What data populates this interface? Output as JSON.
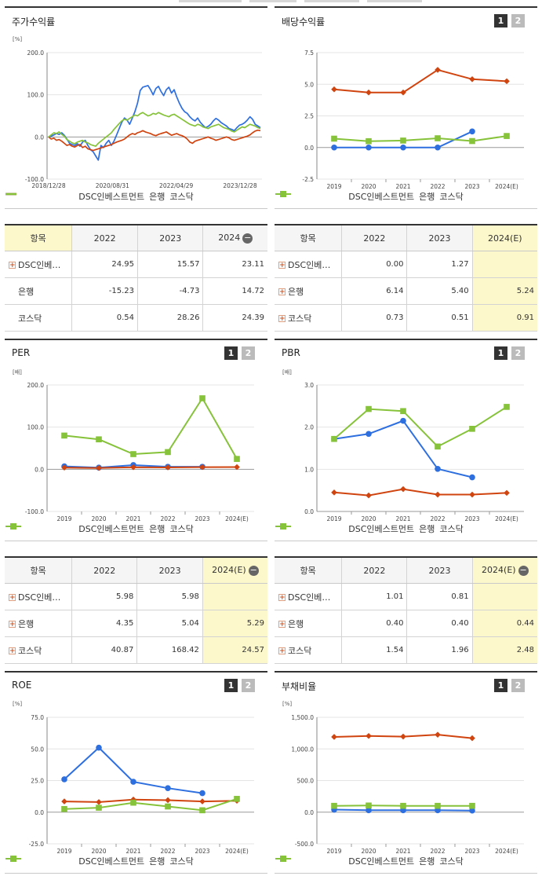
{
  "colors": {
    "dsc": "#2e6fe0",
    "bank": "#d04410",
    "kosdaq": "#86c23a"
  },
  "panels": [
    {
      "id": "stock-return",
      "title": "주가수익률",
      "unit": "[%]",
      "pager": [],
      "legend_style": "line",
      "legend": [
        "DSC인베스트먼트",
        "은행",
        "코스닥"
      ],
      "chart_data": {
        "type": "line",
        "ylim": [
          -100,
          200
        ],
        "yticks": [
          "200.0",
          "100.0",
          "0.0",
          "-100.0"
        ],
        "xticks": [
          "2018/12/28",
          "2020/08/31",
          "2022/04/29",
          "2023/12/28"
        ],
        "series": [
          {
            "name": "DSC인베스트먼트",
            "color": "#2e6fe0",
            "values": [
              0,
              2,
              5,
              8,
              6,
              10,
              4,
              -5,
              -15,
              -18,
              -20,
              -16,
              -22,
              -12,
              -8,
              -20,
              -30,
              -35,
              -45,
              -55,
              -20,
              -25,
              -15,
              -8,
              -20,
              -10,
              5,
              20,
              35,
              45,
              40,
              30,
              45,
              60,
              80,
              110,
              118,
              120,
              122,
              112,
              100,
              115,
              120,
              108,
              98,
              112,
              118,
              104,
              112,
              95,
              80,
              68,
              60,
              56,
              48,
              42,
              38,
              45,
              35,
              28,
              22,
              25,
              30,
              38,
              44,
              40,
              34,
              30,
              26,
              20,
              18,
              15,
              22,
              28,
              30,
              34,
              40,
              48,
              42,
              30,
              26,
              22
            ]
          },
          {
            "name": "은행",
            "color": "#d04410",
            "values": [
              0,
              -5,
              -3,
              -8,
              -6,
              -10,
              -15,
              -20,
              -18,
              -22,
              -24,
              -20,
              -18,
              -25,
              -22,
              -28,
              -30,
              -32,
              -30,
              -28,
              -26,
              -24,
              -22,
              -20,
              -18,
              -15,
              -12,
              -10,
              -8,
              -5,
              0,
              5,
              8,
              6,
              10,
              12,
              15,
              12,
              10,
              8,
              5,
              3,
              6,
              8,
              10,
              12,
              8,
              4,
              6,
              8,
              5,
              3,
              0,
              -5,
              -12,
              -15,
              -10,
              -8,
              -6,
              -4,
              -2,
              0,
              -3,
              -5,
              -8,
              -6,
              -4,
              -2,
              0,
              -2,
              -6,
              -8,
              -6,
              -4,
              -2,
              0,
              2,
              5,
              10,
              14,
              16,
              15
            ]
          },
          {
            "name": "코스닥",
            "color": "#86c23a",
            "values": [
              0,
              5,
              10,
              8,
              12,
              6,
              2,
              -6,
              -10,
              -14,
              -16,
              -12,
              -10,
              -8,
              -12,
              -14,
              -18,
              -20,
              -22,
              -15,
              -10,
              -5,
              0,
              5,
              10,
              18,
              25,
              32,
              38,
              42,
              40,
              44,
              48,
              52,
              50,
              55,
              58,
              54,
              50,
              52,
              56,
              54,
              58,
              55,
              52,
              50,
              48,
              52,
              54,
              50,
              46,
              42,
              38,
              34,
              30,
              28,
              26,
              30,
              28,
              24,
              22,
              20,
              24,
              26,
              28,
              30,
              26,
              22,
              20,
              18,
              14,
              12,
              16,
              20,
              24,
              22,
              26,
              30,
              28,
              26,
              22,
              20
            ]
          }
        ]
      }
    },
    {
      "id": "dividend-yield",
      "title": "배당수익률",
      "unit": "",
      "pager": [
        "1",
        "2"
      ],
      "legend_style": "marker",
      "legend": [
        "DSC인베스트먼트",
        "은행",
        "코스닥"
      ],
      "chart_data": {
        "type": "line",
        "ylim": [
          -2.5,
          7.5
        ],
        "yticks": [
          "7.5",
          "5.0",
          "2.5",
          "0.0",
          "-2.5"
        ],
        "xticks": [
          "2019",
          "2020",
          "2021",
          "2022",
          "2023",
          "2024(E)"
        ],
        "series": [
          {
            "name": "DSC인베스트먼트",
            "color": "#2e6fe0",
            "marker": "circle",
            "values": [
              0.0,
              0.0,
              0.0,
              0.0,
              1.27,
              null
            ]
          },
          {
            "name": "은행",
            "color": "#d04410",
            "marker": "diamond",
            "values": [
              4.6,
              4.35,
              4.35,
              6.14,
              5.4,
              5.24
            ]
          },
          {
            "name": "코스닥",
            "color": "#86c23a",
            "marker": "square",
            "values": [
              0.7,
              0.5,
              0.55,
              0.73,
              0.51,
              0.91
            ]
          }
        ]
      }
    },
    {
      "id": "per",
      "title": "PER",
      "unit": "[배]",
      "pager": [
        "1",
        "2"
      ],
      "legend_style": "marker",
      "legend": [
        "DSC인베스트먼트",
        "은행",
        "코스닥"
      ],
      "chart_data": {
        "type": "line",
        "ylim": [
          -100,
          200
        ],
        "yticks": [
          "200.0",
          "100.0",
          "0.0",
          "-100.0"
        ],
        "xticks": [
          "2019",
          "2020",
          "2021",
          "2022",
          "2023",
          "2024(E)"
        ],
        "series": [
          {
            "name": "DSC인베스트먼트",
            "color": "#2e6fe0",
            "marker": "circle",
            "values": [
              7,
              4,
              10,
              5.98,
              5.98,
              null
            ]
          },
          {
            "name": "은행",
            "color": "#d04410",
            "marker": "diamond",
            "values": [
              4,
              3,
              5,
              4.35,
              5.04,
              5.29
            ]
          },
          {
            "name": "코스닥",
            "color": "#86c23a",
            "marker": "square",
            "values": [
              80,
              71,
              36,
              40.87,
              168.42,
              24.57
            ]
          }
        ]
      }
    },
    {
      "id": "pbr",
      "title": "PBR",
      "unit": "[배]",
      "pager": [
        "1",
        "2"
      ],
      "legend_style": "marker",
      "legend": [
        "DSC인베스트먼트",
        "은행",
        "코스닥"
      ],
      "chart_data": {
        "type": "line",
        "ylim": [
          0,
          3
        ],
        "yticks": [
          "3.0",
          "2.0",
          "1.0",
          "0.0"
        ],
        "xticks": [
          "2019",
          "2020",
          "2021",
          "2022",
          "2023",
          "2024(E)"
        ],
        "series": [
          {
            "name": "DSC인베스트먼트",
            "color": "#2e6fe0",
            "marker": "circle",
            "values": [
              1.72,
              1.84,
              2.15,
              1.01,
              0.81,
              null
            ]
          },
          {
            "name": "은행",
            "color": "#d04410",
            "marker": "diamond",
            "values": [
              0.45,
              0.38,
              0.53,
              0.4,
              0.4,
              0.44
            ]
          },
          {
            "name": "코스닥",
            "color": "#86c23a",
            "marker": "square",
            "values": [
              1.72,
              2.43,
              2.38,
              1.54,
              1.96,
              2.48
            ]
          }
        ]
      }
    },
    {
      "id": "roe",
      "title": "ROE",
      "unit": "[%]",
      "pager": [
        "1",
        "2"
      ],
      "legend_style": "marker",
      "legend": [
        "DSC인베스트먼트",
        "은행",
        "코스닥"
      ],
      "chart_data": {
        "type": "line",
        "ylim": [
          -25,
          75
        ],
        "yticks": [
          "75.0",
          "50.0",
          "25.0",
          "0.0",
          "-25.0"
        ],
        "xticks": [
          "2019",
          "2020",
          "2021",
          "2022",
          "2023",
          "2024(E)"
        ],
        "series": [
          {
            "name": "DSC인베스트먼트",
            "color": "#2e6fe0",
            "marker": "circle",
            "values": [
              26,
              51,
              24,
              19,
              15,
              null
            ]
          },
          {
            "name": "은행",
            "color": "#d04410",
            "marker": "diamond",
            "values": [
              8.5,
              8,
              10,
              9.5,
              8.5,
              9
            ]
          },
          {
            "name": "코스닥",
            "color": "#86c23a",
            "marker": "square",
            "values": [
              2.5,
              3.5,
              7.5,
              4.5,
              1.5,
              10.5
            ]
          }
        ]
      }
    },
    {
      "id": "debt-ratio",
      "title": "부채비율",
      "unit": "[%]",
      "pager": [
        "1",
        "2"
      ],
      "legend_style": "marker",
      "legend": [
        "DSC인베스트먼트",
        "은행",
        "코스닥"
      ],
      "chart_data": {
        "type": "line",
        "ylim": [
          -500,
          1500
        ],
        "yticks": [
          "1,500.0",
          "1,000.0",
          "500.0",
          "0.0",
          "-500.0"
        ],
        "xticks": [
          "2019",
          "2020",
          "2021",
          "2022",
          "2023",
          "2024(E)"
        ],
        "series": [
          {
            "name": "DSC인베스트먼트",
            "color": "#2e6fe0",
            "marker": "circle",
            "values": [
              40,
              30,
              30,
              30,
              25,
              null
            ]
          },
          {
            "name": "은행",
            "color": "#d04410",
            "marker": "diamond",
            "values": [
              1190,
              1205,
              1195,
              1225,
              1170,
              null
            ]
          },
          {
            "name": "코스닥",
            "color": "#86c23a",
            "marker": "square",
            "values": [
              100,
              105,
              100,
              100,
              100,
              null
            ]
          }
        ]
      }
    }
  ],
  "tables": [
    {
      "id": "stock-return-table",
      "header": [
        "항목",
        "2022",
        "2023",
        "2024"
      ],
      "toggle": "−",
      "hl_col": -1,
      "rows": [
        {
          "plus": true,
          "name": "DSC인베…",
          "values": [
            "24.95",
            "15.57",
            "23.11"
          ]
        },
        {
          "plus": false,
          "name": "은행",
          "values": [
            "-15.23",
            "-4.73",
            "14.72"
          ]
        },
        {
          "plus": false,
          "name": "코스닥",
          "values": [
            "0.54",
            "28.26",
            "24.39"
          ]
        }
      ]
    },
    {
      "id": "dividend-table",
      "header": [
        "항목",
        "2022",
        "2023",
        "2024(E)"
      ],
      "toggle": "",
      "hl_col": 2,
      "rows": [
        {
          "plus": true,
          "name": "DSC인베…",
          "values": [
            "0.00",
            "1.27",
            ""
          ]
        },
        {
          "plus": true,
          "name": "은행",
          "values": [
            "6.14",
            "5.40",
            "5.24"
          ]
        },
        {
          "plus": true,
          "name": "코스닥",
          "values": [
            "0.73",
            "0.51",
            "0.91"
          ]
        }
      ]
    },
    {
      "id": "per-table",
      "header": [
        "항목",
        "2022",
        "2023",
        "2024(E)"
      ],
      "toggle": "−",
      "hl_col": 2,
      "rows": [
        {
          "plus": true,
          "name": "DSC인베…",
          "values": [
            "5.98",
            "5.98",
            ""
          ]
        },
        {
          "plus": true,
          "name": "은행",
          "values": [
            "4.35",
            "5.04",
            "5.29"
          ]
        },
        {
          "plus": true,
          "name": "코스닥",
          "values": [
            "40.87",
            "168.42",
            "24.57"
          ]
        }
      ]
    },
    {
      "id": "pbr-table",
      "header": [
        "항목",
        "2022",
        "2023",
        "2024(E)"
      ],
      "toggle": "−",
      "hl_col": 2,
      "rows": [
        {
          "plus": true,
          "name": "DSC인베…",
          "values": [
            "1.01",
            "0.81",
            ""
          ]
        },
        {
          "plus": true,
          "name": "은행",
          "values": [
            "0.40",
            "0.40",
            "0.44"
          ]
        },
        {
          "plus": true,
          "name": "코스닥",
          "values": [
            "1.54",
            "1.96",
            "2.48"
          ]
        }
      ]
    }
  ]
}
